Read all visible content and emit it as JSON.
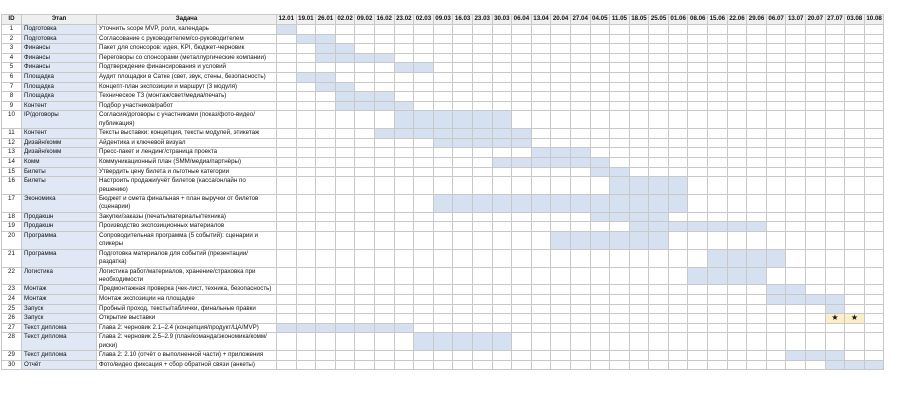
{
  "header": {
    "id": "ID",
    "stage": "Этап",
    "task": "Задача"
  },
  "dates": [
    "12.01",
    "19.01",
    "26.01",
    "02.02",
    "09.02",
    "16.02",
    "23.02",
    "02.03",
    "09.03",
    "16.03",
    "23.03",
    "30.03",
    "06.04",
    "13.04",
    "20.04",
    "27.04",
    "04.05",
    "11.05",
    "18.05",
    "25.05",
    "01.06",
    "08.06",
    "15.06",
    "22.06",
    "29.06",
    "06.07",
    "13.07",
    "20.07",
    "27.07",
    "03.08",
    "10.08"
  ],
  "rows": [
    {
      "id": "1",
      "stage": "Подготовка",
      "task": "Уточнить scope MVP, роли, календарь",
      "start": "12.01",
      "end": "12.01"
    },
    {
      "id": "2",
      "stage": "Подготовка",
      "task": "Согласование с руководителем/со-руководителем",
      "start": "19.01",
      "end": "26.01"
    },
    {
      "id": "3",
      "stage": "Финансы",
      "task": "Пакет для спонсоров: идея, KPI, бюджет-черновик",
      "start": "26.01",
      "end": "02.02"
    },
    {
      "id": "4",
      "stage": "Финансы",
      "task": "Переговоры со спонсорами (металлургические компании)",
      "start": "26.01",
      "end": "16.02"
    },
    {
      "id": "5",
      "stage": "Финансы",
      "task": "Подтверждение финансирования и условий",
      "start": "23.02",
      "end": "02.03"
    },
    {
      "id": "6",
      "stage": "Площадка",
      "task": "Аудит площадки в Сатке (свет, звук, стены, безопасность)",
      "start": "19.01",
      "end": "26.01"
    },
    {
      "id": "7",
      "stage": "Площадка",
      "task": "Концепт-план экспозиции и маршрут (3 модуля)",
      "start": "26.01",
      "end": "02.02"
    },
    {
      "id": "8",
      "stage": "Площадка",
      "task": "Техническое ТЗ (монтаж/свет/медиа/печать)",
      "start": "02.02",
      "end": "16.02"
    },
    {
      "id": "9",
      "stage": "Контент",
      "task": "Подбор участников/работ",
      "start": "02.02",
      "end": "23.02"
    },
    {
      "id": "10",
      "stage": "IP/договоры",
      "task": "Согласия/договоры с участниками (показ/фото-видео/публикация)",
      "start": "23.02",
      "end": "30.03"
    },
    {
      "id": "11",
      "stage": "Контент",
      "task": "Тексты выставки: концепция, тексты модулей, этикетаж",
      "start": "16.02",
      "end": "06.04"
    },
    {
      "id": "12",
      "stage": "Дизайн/комм",
      "task": "Айдентика и ключевой визуал",
      "start": "09.03",
      "end": "06.04"
    },
    {
      "id": "13",
      "stage": "Дизайн/комм",
      "task": "Пресс-пакет и лендинг/страница проекта",
      "start": "13.04",
      "end": "27.04"
    },
    {
      "id": "14",
      "stage": "Комм",
      "task": "Коммуникационный план (SMM/медиа/партнёры)",
      "start": "30.03",
      "end": "04.05"
    },
    {
      "id": "15",
      "stage": "Билеты",
      "task": "Утвердить цену билета и льготные категории",
      "start": "04.05",
      "end": "11.05"
    },
    {
      "id": "16",
      "stage": "Билеты",
      "task": "Настроить продажи/учёт билетов (касса/онлайн по решению)",
      "start": "11.05",
      "end": "01.06"
    },
    {
      "id": "17",
      "stage": "Экономика",
      "task": "Бюджет и смета финальная + план выручки от билетов (сценарии)",
      "start": "09.03",
      "end": "01.06"
    },
    {
      "id": "18",
      "stage": "Продакшн",
      "task": "Закупки/заказы (печать/материалы/техника)",
      "start": "04.05",
      "end": "25.05"
    },
    {
      "id": "19",
      "stage": "Продакшн",
      "task": "Производство экспозиционных материалов",
      "start": "18.05",
      "end": "29.06"
    },
    {
      "id": "20",
      "stage": "Программа",
      "task": "Сопроводительная программа (5 событий): сценарии и спикеры",
      "start": "20.04",
      "end": "25.05"
    },
    {
      "id": "21",
      "stage": "Программа",
      "task": "Подготовка материалов для событий (презентации/раздатка)",
      "start": "15.06",
      "end": "06.07"
    },
    {
      "id": "22",
      "stage": "Логистика",
      "task": "Логистика работ/материалов, хранение/страховка при необходимости",
      "start": "08.06",
      "end": "29.06"
    },
    {
      "id": "23",
      "stage": "Монтаж",
      "task": "Предмонтажная проверка (чек-лист, техника, безопасность)",
      "start": "06.07",
      "end": "13.07"
    },
    {
      "id": "24",
      "stage": "Монтаж",
      "task": "Монтаж экспозиции на площадке",
      "start": "06.07",
      "end": "27.07"
    },
    {
      "id": "25",
      "stage": "Запуск",
      "task": "Пробный проход, тексты/таблички, финальные правки",
      "start": "27.07",
      "end": "27.07"
    },
    {
      "id": "26",
      "stage": "Запуск",
      "task": "Открытие выставки",
      "markers": [
        {
          "date": "27.07",
          "label": "★"
        },
        {
          "date": "03.08",
          "label": "★"
        }
      ]
    },
    {
      "id": "27",
      "stage": "Текст диплома",
      "task": "Глава 2: черновик 2.1–2.4 (концепция/продукт/ЦА/MVP)",
      "start": "12.01",
      "end": "23.02"
    },
    {
      "id": "28",
      "stage": "Текст диплома",
      "task": "Глава 2: черновик 2.5–2.9 (план/команда/экономика/комм/риски)",
      "start": "02.03",
      "end": "30.03"
    },
    {
      "id": "29",
      "stage": "Текст диплома",
      "task": "Глава 2: 2.10 (отчёт о выполненной части) + приложения",
      "start": "13.07",
      "end": "27.07"
    },
    {
      "id": "30",
      "stage": "Отчёт",
      "task": "Фото/видео фиксация + сбор обратной связи (анкеты)",
      "start": "27.07",
      "end": "10.08"
    }
  ]
}
